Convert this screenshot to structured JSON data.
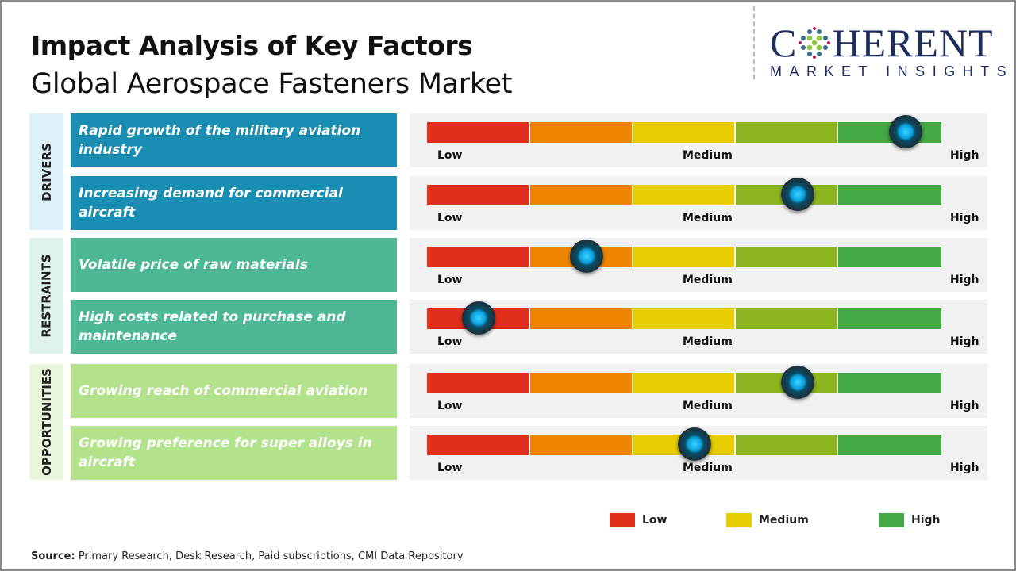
{
  "title": "Impact Analysis of Key Factors",
  "subtitle": "Global Aerospace Fasteners Market",
  "logo": {
    "main": "COHERENT",
    "sub": "MARKET INSIGHTS"
  },
  "chart_data": {
    "type": "gauge",
    "scale_labels": {
      "low": "Low",
      "medium": "Medium",
      "high": "High"
    },
    "segment_colors": [
      "#e02f1b",
      "#ee8400",
      "#e6cc00",
      "#8db51f",
      "#44a844"
    ],
    "groups": [
      {
        "name": "DRIVERS",
        "color": "#1a8db3",
        "side_bg": "#ddf0f8",
        "factors": [
          {
            "label": "Rapid growth of the military aviation industry",
            "impact": 0.93
          },
          {
            "label": "Increasing demand for commercial aircraft",
            "impact": 0.72
          }
        ]
      },
      {
        "name": "RESTRAINTS",
        "color": "#4db796",
        "side_bg": "#dff2ea",
        "factors": [
          {
            "label": "Volatile price of raw materials",
            "impact": 0.31
          },
          {
            "label": "High costs related to purchase and maintenance",
            "impact": 0.1
          }
        ]
      },
      {
        "name": "OPPORTUNITIES",
        "color": "#b3e28c",
        "side_bg": "#e9f6dd",
        "factors": [
          {
            "label": "Growing reach of commercial aviation",
            "impact": 0.72
          },
          {
            "label": "Growing preference for super alloys in aircraft",
            "impact": 0.52
          }
        ]
      }
    ],
    "legend": [
      {
        "label": "Low",
        "color": "#e02f1b"
      },
      {
        "label": "Medium",
        "color": "#e6cc00"
      },
      {
        "label": "High",
        "color": "#44a844"
      }
    ]
  },
  "source": {
    "label": "Source:",
    "text": " Primary Research, Desk Research, Paid subscriptions, CMI Data Repository"
  }
}
